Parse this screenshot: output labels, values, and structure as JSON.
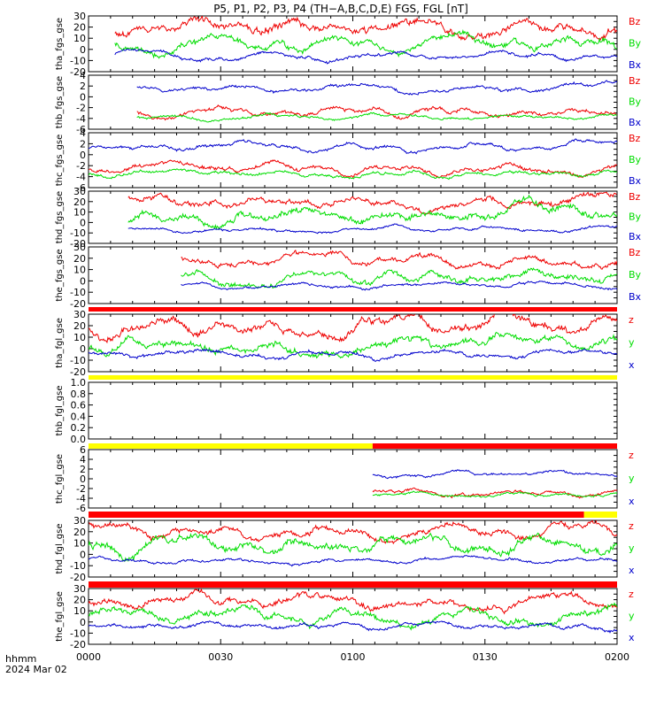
{
  "title": "P5, P1, P2, P3, P4 (TH−A,B,C,D,E) FGS, FGL [nT]",
  "colors": {
    "bx": "#0000cc",
    "by": "#00dd00",
    "bz": "#ee0000",
    "bar_red": "#ff0000",
    "bar_yellow": "#ffff00",
    "axis": "#000000"
  },
  "time_axis": {
    "label_line1": "hhmm",
    "label_line2": "2024 Mar 02",
    "ticks": [
      "0000",
      "0030",
      "0100",
      "0130",
      "0200"
    ],
    "range_minutes": [
      0,
      120
    ]
  },
  "chart_data": [
    {
      "type": "line",
      "ylabel": "tha_fgs_gse",
      "ylim": [
        -20,
        30
      ],
      "ticks": [
        "30",
        "20",
        "10",
        "0",
        "-10",
        "-20"
      ],
      "x_start_min": 6,
      "x_end_min": 120,
      "legend": [
        "Bz",
        "By",
        "Bx"
      ],
      "series": [
        {
          "name": "Bz",
          "mean": 20,
          "amp": 9,
          "seed": 3
        },
        {
          "name": "By",
          "mean": 3,
          "amp": 8,
          "seed": 7
        },
        {
          "name": "Bx",
          "mean": -5,
          "amp": 4,
          "seed": 11
        }
      ]
    },
    {
      "type": "line",
      "ylabel": "thb_fgs_gse",
      "ylim": [
        -6,
        4
      ],
      "ticks": [
        "4",
        "2",
        "0",
        "-2",
        "-4",
        "-6"
      ],
      "x_start_min": 11,
      "x_end_min": 120,
      "legend": [
        "Bz",
        "By",
        "Bx"
      ],
      "series": [
        {
          "name": "Bz",
          "mean": -3.0,
          "amp": 1.0,
          "seed": 13
        },
        {
          "name": "By",
          "mean": -4.0,
          "amp": 0.6,
          "seed": 17
        },
        {
          "name": "Bx",
          "mean": 1.5,
          "amp": 0.8,
          "seed": 19
        }
      ]
    },
    {
      "type": "line",
      "ylabel": "thc_fgs_gse",
      "ylim": [
        -6,
        4
      ],
      "ticks": [
        "4",
        "2",
        "0",
        "-2",
        "-4",
        "-6"
      ],
      "x_start_min": 0,
      "x_end_min": 120,
      "legend": [
        "Bz",
        "By",
        "Bx"
      ],
      "series": [
        {
          "name": "Bz",
          "mean": -2.5,
          "amp": 1.0,
          "seed": 23
        },
        {
          "name": "By",
          "mean": -3.5,
          "amp": 0.7,
          "seed": 29
        },
        {
          "name": "Bx",
          "mean": 1.5,
          "amp": 0.8,
          "seed": 31
        }
      ]
    },
    {
      "type": "line",
      "ylabel": "thd_fgs_gse",
      "ylim": [
        -20,
        30
      ],
      "ticks": [
        "30",
        "20",
        "10",
        "0",
        "-10",
        "-20"
      ],
      "x_start_min": 9,
      "x_end_min": 120,
      "legend": [
        "Bz",
        "By",
        "Bx"
      ],
      "series": [
        {
          "name": "Bz",
          "mean": 20,
          "amp": 7,
          "seed": 37
        },
        {
          "name": "By",
          "mean": 8,
          "amp": 9,
          "seed": 41
        },
        {
          "name": "Bx",
          "mean": -7,
          "amp": 3,
          "seed": 43
        }
      ]
    },
    {
      "type": "line",
      "ylabel": "the_fgs_gse",
      "ylim": [
        -20,
        30
      ],
      "ticks": [
        "30",
        "20",
        "10",
        "0",
        "-10",
        "-20"
      ],
      "x_start_min": 21,
      "x_end_min": 120,
      "legend": [
        "Bz",
        "By",
        "Bx"
      ],
      "series": [
        {
          "name": "Bz",
          "mean": 17,
          "amp": 6,
          "seed": 47
        },
        {
          "name": "By",
          "mean": 3,
          "amp": 7,
          "seed": 53
        },
        {
          "name": "Bx",
          "mean": -4,
          "amp": 3,
          "seed": 59
        }
      ]
    },
    {
      "type": "line",
      "ylabel": "tha_fgl_gse",
      "ylim": [
        -20,
        30
      ],
      "ticks": [
        "30",
        "20",
        "10",
        "0",
        "-10",
        "-20"
      ],
      "x_start_min": 0,
      "x_end_min": 120,
      "legend": [
        "z",
        "y",
        "x"
      ],
      "top_bar": [
        {
          "color": "red",
          "from": 0,
          "to": 120
        }
      ],
      "series": [
        {
          "name": "z",
          "mean": 20,
          "amp": 9,
          "seed": 61
        },
        {
          "name": "y",
          "mean": 3,
          "amp": 8,
          "seed": 67
        },
        {
          "name": "x",
          "mean": -5,
          "amp": 4,
          "seed": 71
        }
      ]
    },
    {
      "type": "line",
      "ylabel": "thb_fgl_gse",
      "ylim": [
        0,
        1
      ],
      "ticks": [
        "1.0",
        "0.8",
        "0.6",
        "0.4",
        "0.2",
        "0.0"
      ],
      "x_start_min": 0,
      "x_end_min": 0,
      "legend": [],
      "top_bar": [
        {
          "color": "yellow",
          "from": 0,
          "to": 120
        }
      ],
      "series": []
    },
    {
      "type": "line",
      "ylabel": "thc_fgl_gse",
      "ylim": [
        -6,
        6
      ],
      "ticks": [
        "6",
        "4",
        "2",
        "0",
        "-2",
        "-4",
        "-6"
      ],
      "x_start_min": 64.5,
      "x_end_min": 120,
      "legend": [
        "z",
        "y",
        "x"
      ],
      "top_bar": [
        {
          "color": "yellow",
          "from": 0,
          "to": 64.5
        },
        {
          "color": "red",
          "from": 64.5,
          "to": 120
        }
      ],
      "series": [
        {
          "name": "z",
          "mean": -2.8,
          "amp": 0.8,
          "seed": 73
        },
        {
          "name": "y",
          "mean": -3.4,
          "amp": 0.6,
          "seed": 79
        },
        {
          "name": "x",
          "mean": 1.0,
          "amp": 0.7,
          "seed": 83
        }
      ]
    },
    {
      "type": "line",
      "ylabel": "thd_fgl_gse",
      "ylim": [
        -20,
        30
      ],
      "ticks": [
        "30",
        "20",
        "10",
        "0",
        "-10",
        "-20"
      ],
      "x_start_min": 0,
      "x_end_min": 120,
      "legend": [
        "z",
        "y",
        "x"
      ],
      "top_bar": [
        {
          "color": "red",
          "from": 0,
          "to": 112.5
        },
        {
          "color": "yellow",
          "from": 112.5,
          "to": 120
        }
      ],
      "series": [
        {
          "name": "z",
          "mean": 20,
          "amp": 7,
          "seed": 89
        },
        {
          "name": "y",
          "mean": 8,
          "amp": 9,
          "seed": 97
        },
        {
          "name": "x",
          "mean": -6,
          "amp": 3,
          "seed": 101
        }
      ]
    },
    {
      "type": "line",
      "ylabel": "the_fgl_gse",
      "ylim": [
        -20,
        30
      ],
      "ticks": [
        "30",
        "20",
        "10",
        "0",
        "-10",
        "-20"
      ],
      "x_start_min": 0,
      "x_end_min": 120,
      "legend": [
        "z",
        "y",
        "x"
      ],
      "top_bar": [
        {
          "color": "red",
          "from": 0,
          "to": 120
        }
      ],
      "series": [
        {
          "name": "z",
          "mean": 18,
          "amp": 7,
          "seed": 103
        },
        {
          "name": "y",
          "mean": 5,
          "amp": 8,
          "seed": 107
        },
        {
          "name": "x",
          "mean": -4,
          "amp": 4,
          "seed": 109
        }
      ]
    }
  ]
}
